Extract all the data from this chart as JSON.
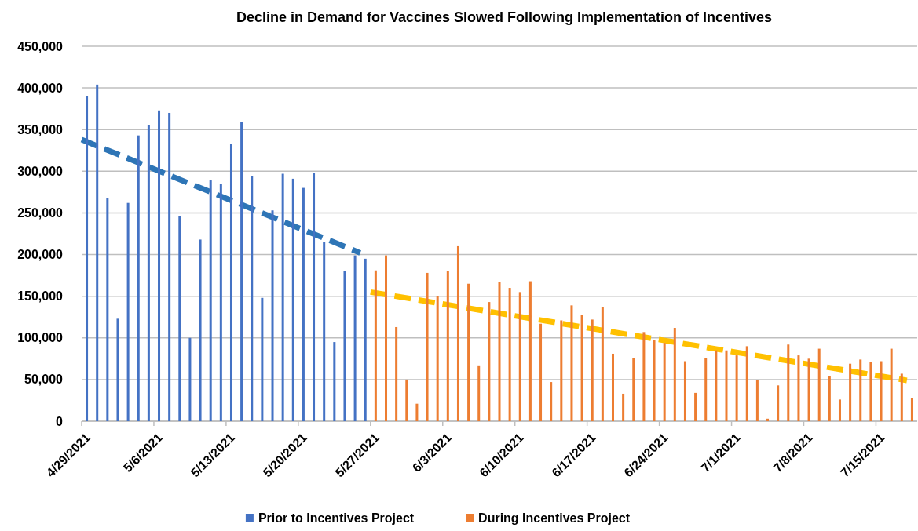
{
  "chart_data": {
    "type": "bar",
    "title": "Decline in Demand for Vaccines Slowed Following Implementation of Incentives",
    "series": [
      {
        "name": "Prior to Incentives Project",
        "color": "#4472c4",
        "x": [
          "2021-04-29",
          "2021-04-30",
          "2021-05-01",
          "2021-05-02",
          "2021-05-03",
          "2021-05-04",
          "2021-05-05",
          "2021-05-06",
          "2021-05-07",
          "2021-05-08",
          "2021-05-09",
          "2021-05-10",
          "2021-05-11",
          "2021-05-12",
          "2021-05-13",
          "2021-05-14",
          "2021-05-15",
          "2021-05-16",
          "2021-05-17",
          "2021-05-18",
          "2021-05-19",
          "2021-05-20",
          "2021-05-21",
          "2021-05-22",
          "2021-05-23",
          "2021-05-24",
          "2021-05-25",
          "2021-05-26"
        ],
        "values": [
          390000,
          404000,
          268000,
          123000,
          262000,
          343000,
          355000,
          373000,
          370000,
          246000,
          100000,
          218000,
          289000,
          285000,
          333000,
          359000,
          294000,
          148000,
          253000,
          297000,
          291000,
          280000,
          298000,
          215000,
          95000,
          180000,
          199000,
          195000
        ]
      },
      {
        "name": "During Incentives Project",
        "color": "#ed7d31",
        "x": [
          "2021-05-27",
          "2021-05-28",
          "2021-05-29",
          "2021-05-30",
          "2021-05-31",
          "2021-06-01",
          "2021-06-02",
          "2021-06-03",
          "2021-06-04",
          "2021-06-05",
          "2021-06-06",
          "2021-06-07",
          "2021-06-08",
          "2021-06-09",
          "2021-06-10",
          "2021-06-11",
          "2021-06-12",
          "2021-06-13",
          "2021-06-14",
          "2021-06-15",
          "2021-06-16",
          "2021-06-17",
          "2021-06-18",
          "2021-06-19",
          "2021-06-20",
          "2021-06-21",
          "2021-06-22",
          "2021-06-23",
          "2021-06-24",
          "2021-06-25",
          "2021-06-26",
          "2021-06-27",
          "2021-06-28",
          "2021-06-29",
          "2021-06-30",
          "2021-07-01",
          "2021-07-02",
          "2021-07-03",
          "2021-07-04",
          "2021-07-05",
          "2021-07-06",
          "2021-07-07",
          "2021-07-08",
          "2021-07-09",
          "2021-07-10",
          "2021-07-11",
          "2021-07-12",
          "2021-07-13",
          "2021-07-14",
          "2021-07-15",
          "2021-07-16",
          "2021-07-17",
          "2021-07-18"
        ],
        "values": [
          181000,
          199000,
          113000,
          50000,
          21000,
          178000,
          150000,
          180000,
          210000,
          165000,
          67000,
          143000,
          167000,
          160000,
          155000,
          168000,
          117000,
          47000,
          121000,
          139000,
          128000,
          122000,
          137000,
          81000,
          33000,
          76000,
          107000,
          97000,
          94000,
          112000,
          72000,
          34000,
          76000,
          85000,
          85000,
          79000,
          90000,
          49000,
          3000,
          43000,
          92000,
          79000,
          75000,
          87000,
          54000,
          26000,
          69000,
          74000,
          71000,
          72000,
          87000,
          57000,
          28000
        ]
      },
      {
        "type": "line",
        "color": "#2e75b6",
        "line_style": "dashed",
        "x": [
          "2021-04-29",
          "2021-05-26"
        ],
        "values": [
          338000,
          202000
        ]
      },
      {
        "type": "line",
        "color": "#ffc000",
        "line_style": "dashed",
        "x": [
          "2021-05-27",
          "2021-07-18"
        ],
        "values": [
          155000,
          49000
        ]
      }
    ],
    "xlim": [
      "2021-04-29",
      "2021-07-19"
    ],
    "xticks": [
      {
        "value": "2021-04-29",
        "label": "4/29/2021"
      },
      {
        "value": "2021-05-06",
        "label": "5/6/2021"
      },
      {
        "value": "2021-05-13",
        "label": "5/13/2021"
      },
      {
        "value": "2021-05-20",
        "label": "5/20/2021"
      },
      {
        "value": "2021-05-27",
        "label": "5/27/2021"
      },
      {
        "value": "2021-06-03",
        "label": "6/3/2021"
      },
      {
        "value": "2021-06-10",
        "label": "6/10/2021"
      },
      {
        "value": "2021-06-17",
        "label": "6/17/2021"
      },
      {
        "value": "2021-06-24",
        "label": "6/24/2021"
      },
      {
        "value": "2021-07-01",
        "label": "7/1/2021"
      },
      {
        "value": "2021-07-08",
        "label": "7/8/2021"
      },
      {
        "value": "2021-07-15",
        "label": "7/15/2021"
      }
    ],
    "ylim": [
      0,
      450000
    ],
    "yticks": [
      0,
      {
        "value": 50000,
        "label": "50,000"
      },
      {
        "value": 100000,
        "label": "100,000"
      },
      {
        "value": 150000,
        "label": "150,000"
      },
      {
        "value": 200000,
        "label": "200,000"
      },
      {
        "value": 250000,
        "label": "250,000"
      },
      {
        "value": 300000,
        "label": "300,000"
      },
      {
        "value": 350000,
        "label": "350,000"
      },
      {
        "value": 400000,
        "label": "400,000"
      },
      {
        "value": 450000,
        "label": "450,000"
      }
    ],
    "grid": "y",
    "legend": "bottom"
  }
}
